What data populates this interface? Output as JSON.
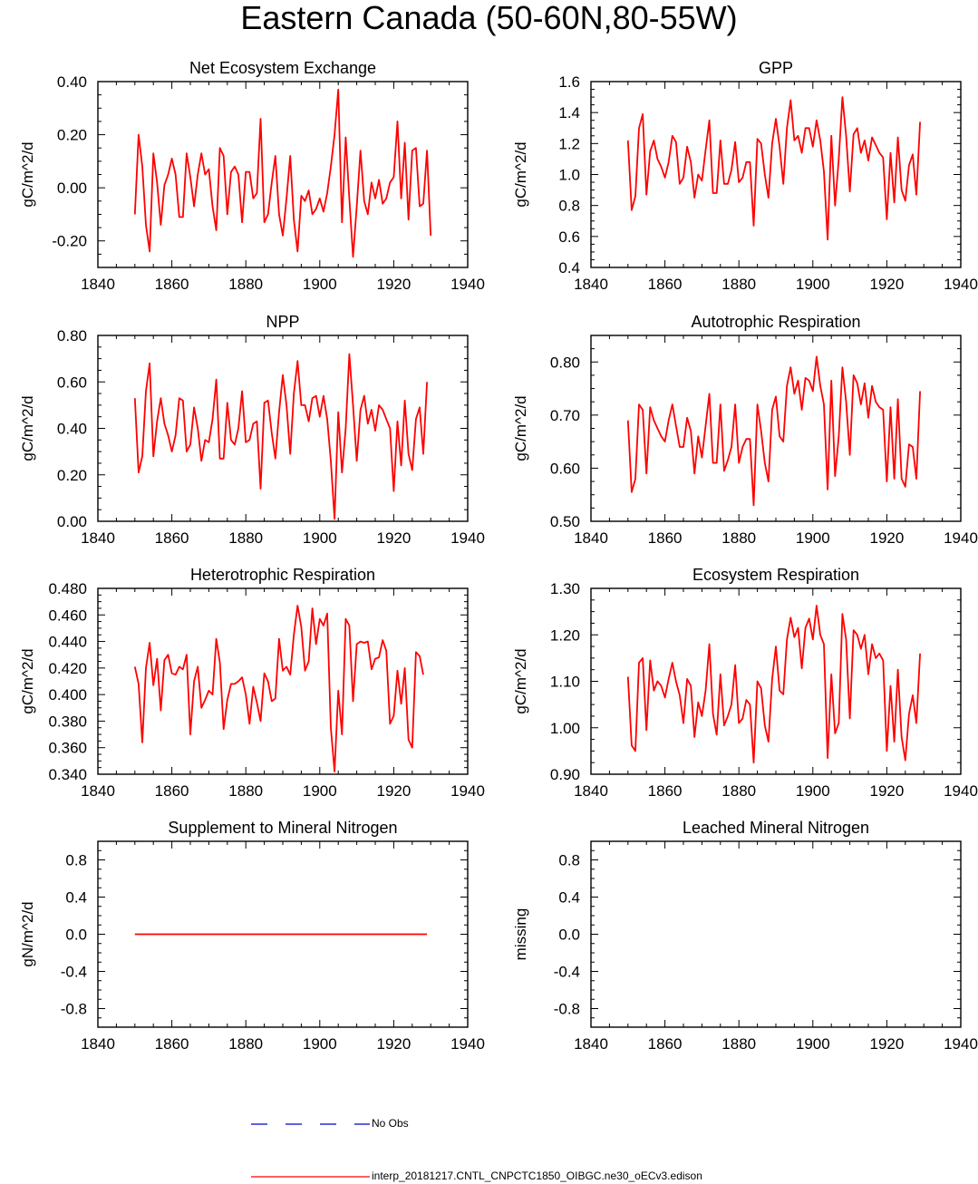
{
  "title": "Eastern Canada (50-60N,80-55W)",
  "colors": {
    "model": "#ff0000",
    "obs": "#0000cc",
    "axis": "#000000"
  },
  "legend": {
    "obs_label": "No Obs",
    "model_label": "interp_20181217.CNTL_CNPCTC1850_OIBGC.ne30_oECv3.edison"
  },
  "chart_data": [
    {
      "type": "line",
      "title": "Net Ecosystem Exchange",
      "ylabel": "gC/m^2/d",
      "xlim": [
        1840,
        1940
      ],
      "xticks": [
        "1840",
        "1860",
        "1880",
        "1900",
        "1920",
        "1940"
      ],
      "ylim": [
        -0.3,
        0.4
      ],
      "yticks": [
        "-0.20",
        "0.00",
        "0.20",
        "0.40"
      ],
      "ytick_values": [
        -0.2,
        0.0,
        0.2,
        0.4
      ],
      "yminor_step": 0.05,
      "x_start": 1850,
      "series": [
        {
          "name": "model",
          "values": [
            -0.1,
            0.2,
            0.08,
            -0.14,
            -0.24,
            0.13,
            0.02,
            -0.14,
            0.01,
            0.05,
            0.11,
            0.05,
            -0.11,
            -0.11,
            0.13,
            0.04,
            -0.07,
            0.05,
            0.13,
            0.05,
            0.07,
            -0.07,
            -0.16,
            0.15,
            0.12,
            -0.1,
            0.06,
            0.08,
            0.05,
            -0.13,
            0.06,
            0.06,
            -0.04,
            -0.02,
            0.26,
            -0.13,
            -0.1,
            0.02,
            0.12,
            -0.1,
            -0.18,
            -0.04,
            0.12,
            -0.12,
            -0.24,
            -0.03,
            -0.05,
            -0.01,
            -0.1,
            -0.08,
            -0.04,
            -0.09,
            -0.02,
            0.08,
            0.2,
            0.37,
            -0.13,
            0.19,
            -0.04,
            -0.26,
            -0.07,
            0.14,
            -0.05,
            -0.1,
            0.02,
            -0.04,
            0.03,
            -0.06,
            -0.04,
            0.02,
            0.04,
            0.25,
            -0.04,
            0.17,
            -0.12,
            0.14,
            0.15,
            -0.07,
            -0.06,
            0.14,
            -0.18
          ]
        }
      ]
    },
    {
      "type": "line",
      "title": "GPP",
      "ylabel": "gC/m^2/d",
      "xlim": [
        1840,
        1940
      ],
      "xticks": [
        "1840",
        "1860",
        "1880",
        "1900",
        "1920",
        "1940"
      ],
      "ylim": [
        0.4,
        1.6
      ],
      "yticks": [
        "0.4",
        "0.6",
        "0.8",
        "1.0",
        "1.2",
        "1.4",
        "1.6"
      ],
      "ytick_values": [
        0.4,
        0.6,
        0.8,
        1.0,
        1.2,
        1.4,
        1.6
      ],
      "yminor_step": 0.05,
      "x_start": 1850,
      "series": [
        {
          "name": "model",
          "values": [
            1.22,
            0.77,
            0.86,
            1.3,
            1.39,
            0.87,
            1.15,
            1.22,
            1.1,
            1.05,
            0.98,
            1.08,
            1.25,
            1.21,
            0.94,
            0.98,
            1.18,
            1.08,
            0.85,
            1.0,
            0.96,
            1.16,
            1.35,
            0.88,
            0.88,
            1.22,
            0.94,
            0.94,
            1.03,
            1.21,
            0.95,
            0.98,
            1.08,
            1.08,
            0.67,
            1.23,
            1.2,
            1.0,
            0.85,
            1.2,
            1.36,
            1.18,
            0.94,
            1.3,
            1.48,
            1.22,
            1.25,
            1.14,
            1.3,
            1.3,
            1.18,
            1.35,
            1.22,
            1.02,
            0.58,
            1.25,
            0.8,
            1.1,
            1.5,
            1.25,
            0.89,
            1.26,
            1.3,
            1.14,
            1.22,
            1.09,
            1.24,
            1.19,
            1.14,
            1.11,
            0.71,
            1.14,
            0.82,
            1.24,
            0.9,
            0.83,
            1.06,
            1.13,
            0.87,
            1.34
          ]
        }
      ]
    },
    {
      "type": "line",
      "title": "NPP",
      "ylabel": "gC/m^2/d",
      "xlim": [
        1840,
        1940
      ],
      "xticks": [
        "1840",
        "1860",
        "1880",
        "1900",
        "1920",
        "1940"
      ],
      "ylim": [
        0.0,
        0.8
      ],
      "yticks": [
        "0.00",
        "0.20",
        "0.40",
        "0.60",
        "0.80"
      ],
      "ytick_values": [
        0.0,
        0.2,
        0.4,
        0.6,
        0.8
      ],
      "yminor_step": 0.05,
      "x_start": 1850,
      "series": [
        {
          "name": "model",
          "values": [
            0.53,
            0.21,
            0.28,
            0.56,
            0.68,
            0.28,
            0.43,
            0.53,
            0.42,
            0.37,
            0.3,
            0.37,
            0.53,
            0.52,
            0.3,
            0.33,
            0.49,
            0.4,
            0.26,
            0.35,
            0.34,
            0.44,
            0.61,
            0.27,
            0.27,
            0.51,
            0.35,
            0.33,
            0.4,
            0.56,
            0.34,
            0.35,
            0.42,
            0.43,
            0.14,
            0.51,
            0.52,
            0.38,
            0.27,
            0.47,
            0.63,
            0.5,
            0.29,
            0.55,
            0.69,
            0.5,
            0.5,
            0.43,
            0.53,
            0.54,
            0.45,
            0.54,
            0.44,
            0.26,
            0.01,
            0.47,
            0.21,
            0.4,
            0.72,
            0.5,
            0.26,
            0.48,
            0.54,
            0.42,
            0.48,
            0.39,
            0.5,
            0.48,
            0.44,
            0.4,
            0.13,
            0.43,
            0.24,
            0.52,
            0.29,
            0.22,
            0.44,
            0.49,
            0.29,
            0.6
          ]
        }
      ]
    },
    {
      "type": "line",
      "title": "Autotrophic Respiration",
      "ylabel": "gC/m^2/d",
      "xlim": [
        1840,
        1940
      ],
      "xticks": [
        "1840",
        "1860",
        "1880",
        "1900",
        "1920",
        "1940"
      ],
      "ylim": [
        0.5,
        0.85
      ],
      "yticks": [
        "0.50",
        "0.60",
        "0.70",
        "0.80"
      ],
      "ytick_values": [
        0.5,
        0.6,
        0.7,
        0.8
      ],
      "yminor_step": 0.025,
      "x_start": 1850,
      "series": [
        {
          "name": "model",
          "values": [
            0.69,
            0.555,
            0.58,
            0.72,
            0.71,
            0.59,
            0.715,
            0.69,
            0.675,
            0.66,
            0.65,
            0.69,
            0.72,
            0.68,
            0.64,
            0.64,
            0.695,
            0.67,
            0.59,
            0.66,
            0.62,
            0.68,
            0.74,
            0.61,
            0.61,
            0.72,
            0.595,
            0.615,
            0.64,
            0.72,
            0.61,
            0.64,
            0.655,
            0.655,
            0.53,
            0.72,
            0.67,
            0.61,
            0.575,
            0.71,
            0.735,
            0.66,
            0.65,
            0.755,
            0.79,
            0.74,
            0.765,
            0.71,
            0.77,
            0.765,
            0.745,
            0.81,
            0.755,
            0.72,
            0.56,
            0.765,
            0.585,
            0.66,
            0.79,
            0.725,
            0.625,
            0.775,
            0.76,
            0.72,
            0.76,
            0.695,
            0.755,
            0.725,
            0.715,
            0.71,
            0.575,
            0.715,
            0.58,
            0.73,
            0.58,
            0.565,
            0.645,
            0.64,
            0.58,
            0.745
          ]
        }
      ]
    },
    {
      "type": "line",
      "title": "Heterotrophic Respiration",
      "ylabel": "gC/m^2/d",
      "xlim": [
        1840,
        1940
      ],
      "xticks": [
        "1840",
        "1860",
        "1880",
        "1900",
        "1920",
        "1940"
      ],
      "ylim": [
        0.34,
        0.48
      ],
      "yticks": [
        "0.340",
        "0.360",
        "0.380",
        "0.400",
        "0.420",
        "0.440",
        "0.460",
        "0.480"
      ],
      "ytick_values": [
        0.34,
        0.36,
        0.38,
        0.4,
        0.42,
        0.44,
        0.46,
        0.48
      ],
      "yminor_step": 0.005,
      "x_start": 1850,
      "series": [
        {
          "name": "model",
          "values": [
            0.421,
            0.408,
            0.364,
            0.42,
            0.439,
            0.407,
            0.427,
            0.388,
            0.426,
            0.43,
            0.416,
            0.415,
            0.421,
            0.419,
            0.43,
            0.37,
            0.41,
            0.421,
            0.39,
            0.396,
            0.403,
            0.4,
            0.442,
            0.424,
            0.374,
            0.396,
            0.408,
            0.408,
            0.41,
            0.413,
            0.4,
            0.378,
            0.406,
            0.394,
            0.38,
            0.416,
            0.41,
            0.395,
            0.397,
            0.442,
            0.418,
            0.421,
            0.415,
            0.445,
            0.467,
            0.451,
            0.418,
            0.425,
            0.465,
            0.438,
            0.457,
            0.452,
            0.461,
            0.375,
            0.342,
            0.403,
            0.37,
            0.457,
            0.452,
            0.395,
            0.438,
            0.44,
            0.439,
            0.44,
            0.419,
            0.427,
            0.428,
            0.441,
            0.433,
            0.378,
            0.384,
            0.418,
            0.393,
            0.42,
            0.366,
            0.36,
            0.432,
            0.429,
            0.415
          ]
        }
      ]
    },
    {
      "type": "line",
      "title": "Ecosystem Respiration",
      "ylabel": "gC/m^2/d",
      "xlim": [
        1840,
        1940
      ],
      "xticks": [
        "1840",
        "1860",
        "1880",
        "1900",
        "1920",
        "1940"
      ],
      "ylim": [
        0.9,
        1.3
      ],
      "yticks": [
        "0.90",
        "1.00",
        "1.10",
        "1.20",
        "1.30"
      ],
      "ytick_values": [
        0.9,
        1.0,
        1.1,
        1.2,
        1.3
      ],
      "yminor_step": 0.025,
      "x_start": 1850,
      "series": [
        {
          "name": "model",
          "values": [
            1.11,
            0.962,
            0.95,
            1.14,
            1.15,
            0.995,
            1.145,
            1.08,
            1.1,
            1.09,
            1.065,
            1.105,
            1.14,
            1.1,
            1.07,
            1.01,
            1.105,
            1.09,
            0.98,
            1.055,
            1.025,
            1.08,
            1.18,
            1.03,
            0.985,
            1.115,
            1.005,
            1.025,
            1.05,
            1.135,
            1.01,
            1.02,
            1.06,
            1.05,
            0.925,
            1.1,
            1.085,
            1.005,
            0.97,
            1.105,
            1.175,
            1.08,
            1.072,
            1.19,
            1.237,
            1.195,
            1.215,
            1.128,
            1.215,
            1.235,
            1.19,
            1.263,
            1.2,
            1.18,
            0.935,
            1.115,
            0.988,
            1.01,
            1.245,
            1.19,
            1.02,
            1.21,
            1.2,
            1.17,
            1.2,
            1.115,
            1.18,
            1.15,
            1.16,
            1.145,
            0.95,
            1.09,
            0.97,
            1.125,
            0.98,
            0.93,
            1.03,
            1.07,
            1.01,
            1.16
          ]
        }
      ]
    },
    {
      "type": "line",
      "title": "Supplement to Mineral Nitrogen",
      "ylabel": "gN/m^2/d",
      "xlim": [
        1840,
        1940
      ],
      "xticks": [
        "1840",
        "1860",
        "1880",
        "1900",
        "1920",
        "1940"
      ],
      "ylim": [
        -1.0,
        1.0
      ],
      "yticks": [
        "-0.8",
        "-0.4",
        "0.0",
        "0.4",
        "0.8"
      ],
      "ytick_values": [
        -0.8,
        -0.4,
        0.0,
        0.4,
        0.8
      ],
      "yminor_step": 0.1,
      "x_start": 1850,
      "series": [
        {
          "name": "model",
          "x": [
            1850,
            1929
          ],
          "values": [
            0.0,
            0.0
          ]
        }
      ]
    },
    {
      "type": "line",
      "title": "Leached Mineral Nitrogen",
      "ylabel": "missing",
      "xlim": [
        1840,
        1940
      ],
      "xticks": [
        "1840",
        "1860",
        "1880",
        "1900",
        "1920",
        "1940"
      ],
      "ylim": [
        -1.0,
        1.0
      ],
      "yticks": [
        "-0.8",
        "-0.4",
        "0.0",
        "0.4",
        "0.8"
      ],
      "ytick_values": [
        -0.8,
        -0.4,
        0.0,
        0.4,
        0.8
      ],
      "yminor_step": 0.1,
      "x_start": 1850,
      "series": []
    }
  ]
}
